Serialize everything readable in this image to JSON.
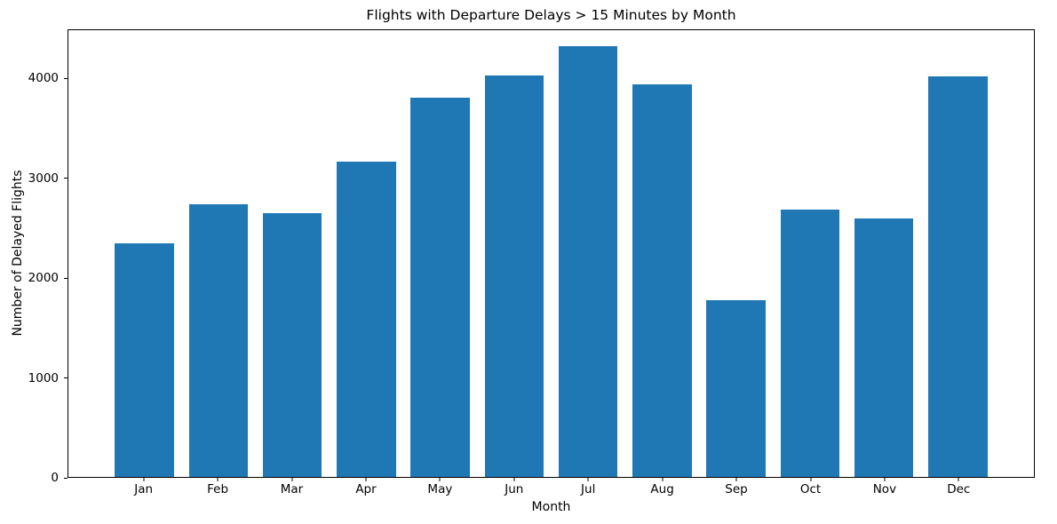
{
  "chart_data": {
    "type": "bar",
    "title": "Flights with Departure Delays > 15 Minutes by Month",
    "xlabel": "Month",
    "ylabel": "Number of Delayed Flights",
    "categories": [
      "Jan",
      "Feb",
      "Mar",
      "Apr",
      "May",
      "Jun",
      "Jul",
      "Aug",
      "Sep",
      "Oct",
      "Nov",
      "Dec"
    ],
    "values": [
      2340,
      2730,
      2640,
      3160,
      3800,
      4020,
      4310,
      3930,
      1770,
      2680,
      2590,
      4010
    ],
    "bar_color": "#1f77b4",
    "ylim": [
      0,
      4490
    ],
    "yticks": [
      0,
      1000,
      2000,
      3000,
      4000
    ],
    "grid": false,
    "legend": "none"
  }
}
